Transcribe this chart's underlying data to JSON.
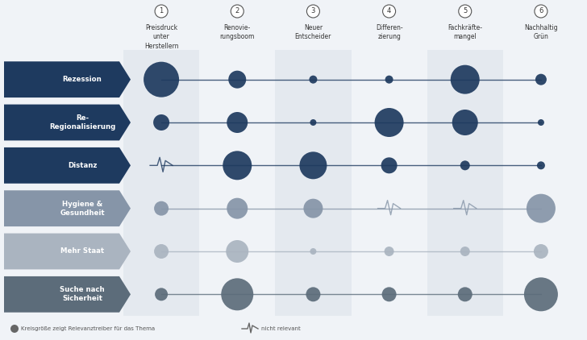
{
  "col_labels": [
    "Preisdruck\nunter\nHerstellern",
    "Renovie-\nrungsboom",
    "Neuer\nEntscheider",
    "Differen-\nzierung",
    "Fachkräfte-\nmangel",
    "Nachhaltig\nGrün"
  ],
  "col_numbers": [
    "1",
    "2",
    "3",
    "4",
    "5",
    "6"
  ],
  "row_labels": [
    "Rezession",
    "Re-\nRegionalisierung",
    "Distanz",
    "Hygiene &\nGesundheit",
    "Mehr Staat",
    "Suche nach\nSicherheit"
  ],
  "row_colors": [
    "#1e3a5f",
    "#1e3a5f",
    "#1e3a5f",
    "#8695a8",
    "#aab4c0",
    "#5c6c7a"
  ],
  "row_text_colors": [
    "#ffffff",
    "#ffffff",
    "#ffffff",
    "#ffffff",
    "#ffffff",
    "#ffffff"
  ],
  "circle_colors": [
    "#1e3a5f",
    "#1e3a5f",
    "#1e3a5f",
    "#8695a8",
    "#aab4c0",
    "#5c6c7a"
  ],
  "line_colors": [
    "#1e3a5f",
    "#1e3a5f",
    "#1e3a5f",
    "#8695a8",
    "#aab4c0",
    "#5c6c7a"
  ],
  "bubble_radii_pt": [
    [
      22,
      11,
      5,
      5,
      18,
      7
    ],
    [
      10,
      13,
      4,
      18,
      16,
      4
    ],
    [
      0,
      18,
      17,
      10,
      6,
      5
    ],
    [
      9,
      13,
      12,
      0,
      0,
      18
    ],
    [
      9,
      14,
      4,
      6,
      6,
      9
    ],
    [
      8,
      20,
      9,
      9,
      9,
      21
    ]
  ],
  "not_relevant": [
    [
      false,
      false,
      false,
      false,
      false,
      false
    ],
    [
      false,
      false,
      false,
      false,
      false,
      false
    ],
    [
      true,
      false,
      false,
      false,
      false,
      false
    ],
    [
      false,
      false,
      false,
      true,
      true,
      false
    ],
    [
      false,
      false,
      false,
      false,
      false,
      false
    ],
    [
      false,
      false,
      false,
      false,
      false,
      false
    ]
  ],
  "col_bg_shaded": [
    true,
    false,
    true,
    false,
    true,
    false
  ],
  "col_bg_color": "#e4e9ef",
  "background_color": "#f0f3f7",
  "legend_circle_text": "Kreisgröße zeigt Relevanztreiber für das Thema",
  "legend_wave_text": "nicht relevant"
}
